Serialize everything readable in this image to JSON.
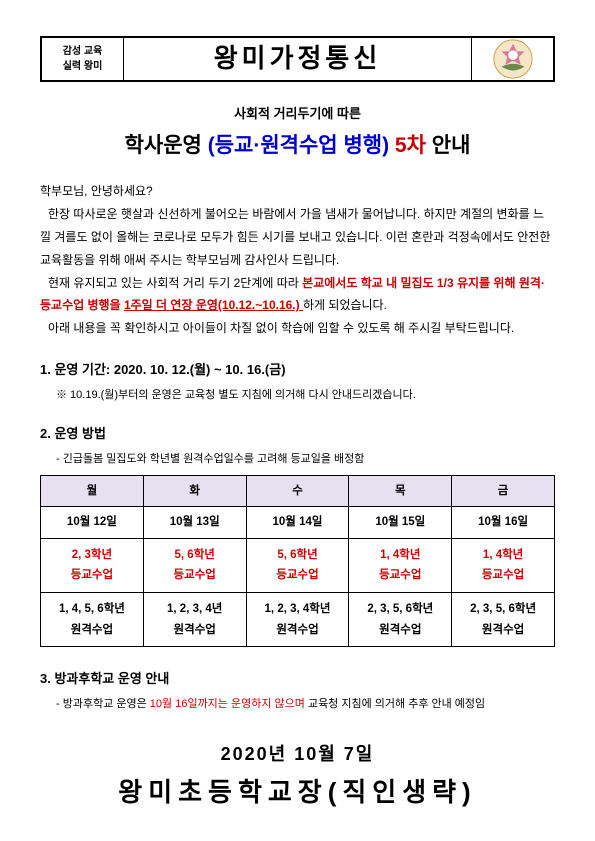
{
  "header": {
    "left_line1": "감성 교육",
    "left_line2": "실력 왕미",
    "center": "왕미가정통신"
  },
  "title": {
    "sub": "사회적 거리두기에 따른",
    "main_black1": "학사운영 ",
    "main_blue": "(등교·원격수업 병행)",
    "main_red": " 5차",
    "main_black2": " 안내"
  },
  "greeting": "학부모님, 안녕하세요?",
  "para1": "한장 따사로운 햇살과 신선하게 불어오는 바람에서 가을 냄새가 물어납니다. 하지만 계절의 변화를 느낄 겨를도 없이 올해는 코로나로 모두가 힘든 시기를 보내고 있습니다. 이런 혼란과 걱정속에서도 안전한 교육활동을 위해 애써 주시는 학부모님께 감사인사 드립니다.",
  "para2_lead": "현재 유지되고 있는 사회적 거리 두기 2단계에 따라 ",
  "para2_red1": "본교에서도 학교 내 밀집도 1/3 유지를 위해 원격·등교수업 병행을 ",
  "para2_red2_underline": " 1주일 더 연장 운영(10.12.~10.16.) ",
  "para2_tail": "하게 되었습니다.",
  "para3": "아래 내용을 꼭 확인하시고 아이들이 차질 없이 학습에 임할 수 있도록 해 주시길 부탁드립니다.",
  "sec1": {
    "title": "1. 운영 기간: 2020. 10. 12.(월) ~ 10. 16.(금)",
    "note": "※ 10.19.(월)부터의 운영은 교육청 별도 지침에 의거해 다시 안내드리겠습니다."
  },
  "sec2": {
    "title": "2. 운영 방법",
    "note": "- 긴급돌봄 밀집도와 학년별 원격수업일수를 고려해 등교일을 배정함",
    "headers": [
      "월",
      "화",
      "수",
      "목",
      "금"
    ],
    "dates": [
      "10월 12일",
      "10월 13일",
      "10월 14일",
      "10월 15일",
      "10월 16일"
    ],
    "red_row": [
      "2, 3학년\n등교수업",
      "5, 6학년\n등교수업",
      "5, 6학년\n등교수업",
      "1, 4학년\n등교수업",
      "1, 4학년\n등교수업"
    ],
    "black_row": [
      "1, 4, 5, 6학년\n원격수업",
      "1, 2, 3, 4년\n원격수업",
      "1, 2, 3, 4학년\n원격수업",
      "2, 3, 5, 6학년\n원격수업",
      "2, 3, 5, 6학년\n원격수업"
    ]
  },
  "sec3": {
    "title": "3. 방과후학교 운영 안내",
    "note_lead": "- 방과후학교 운영은 ",
    "note_red": "10월 16일까지는 운영하지 않으며",
    "note_tail": " 교육청 지침에 의거해 추후 안내 예정임"
  },
  "footer": {
    "date": "2020년  10월 7일",
    "school": "왕미초등학교장(직인생략)"
  },
  "colors": {
    "red": "#cc0000",
    "blue": "#0000cc",
    "table_header_bg": "#e6e0f0"
  }
}
